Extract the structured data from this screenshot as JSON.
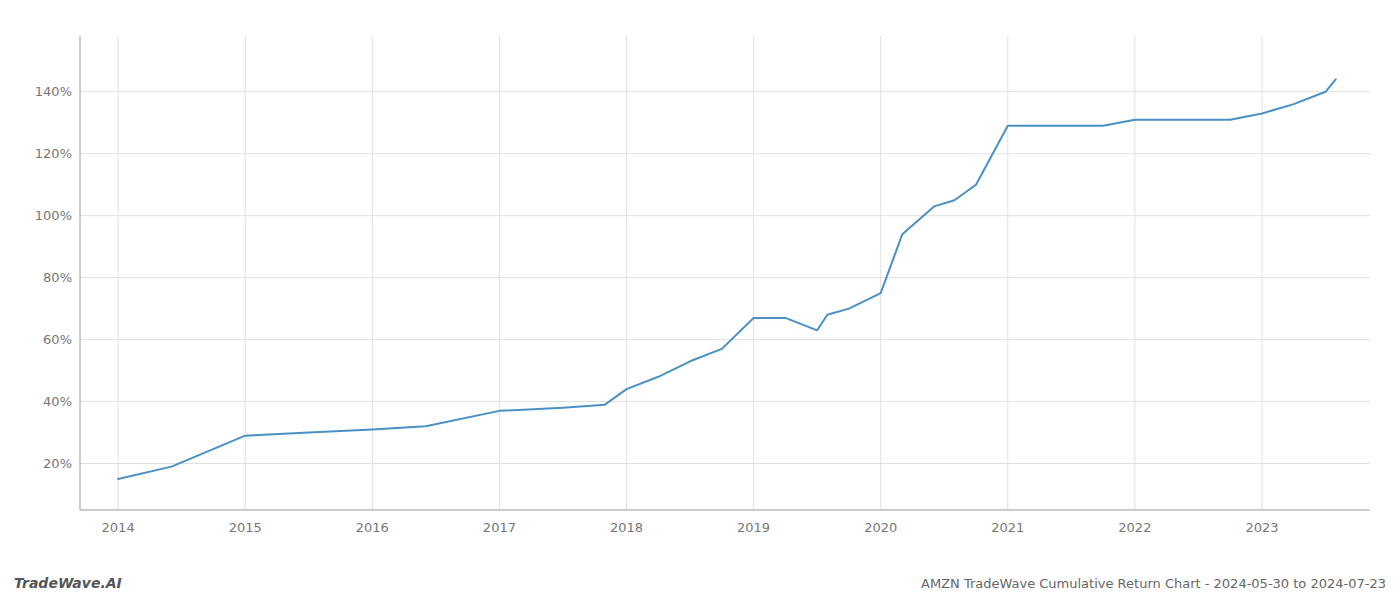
{
  "chart_data": {
    "type": "line",
    "title": "AMZN TradeWave Cumulative Return Chart - 2024-05-30 to 2024-07-23",
    "annotations": [
      "TradeWave.AI"
    ],
    "color": "#4a90c4",
    "grid": true,
    "x": [
      2014.0,
      2014.42,
      2015.0,
      2015.5,
      2016.0,
      2016.42,
      2017.0,
      2017.5,
      2017.83,
      2018.0,
      2018.25,
      2018.5,
      2018.75,
      2019.0,
      2019.25,
      2019.5,
      2019.58,
      2019.75,
      2020.0,
      2020.17,
      2020.42,
      2020.58,
      2020.75,
      2021.0,
      2021.25,
      2021.42,
      2021.58,
      2021.75,
      2022.0,
      2022.25,
      2022.5,
      2022.75,
      2023.0,
      2023.25,
      2023.5,
      2023.58
    ],
    "values": [
      15,
      19,
      29,
      30,
      31,
      32,
      37,
      38,
      39,
      44,
      48,
      53,
      57,
      67,
      67,
      63,
      68,
      70,
      75,
      94,
      103,
      105,
      110,
      129,
      129,
      129,
      129,
      129,
      131,
      131,
      131,
      131,
      133,
      136,
      140,
      144
    ],
    "xlim": [
      2013.7,
      2023.85
    ],
    "ylim": [
      5,
      158
    ],
    "xticks": [
      2014,
      2015,
      2016,
      2017,
      2018,
      2019,
      2020,
      2021,
      2022,
      2023
    ],
    "yticks": [
      {
        "value": 20,
        "label": "20%"
      },
      {
        "value": 40,
        "label": "40%"
      },
      {
        "value": 60,
        "label": "60%"
      },
      {
        "value": 80,
        "label": "80%"
      },
      {
        "value": 100,
        "label": "100%"
      },
      {
        "value": 120,
        "label": "120%"
      },
      {
        "value": 140,
        "label": "140%"
      }
    ]
  }
}
